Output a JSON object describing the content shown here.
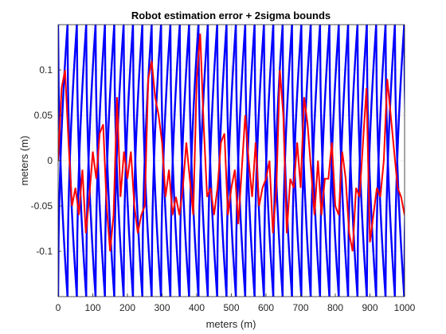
{
  "chart_data": {
    "type": "line",
    "title": "Robot estimation error + 2sigma bounds",
    "xlabel": "meters (m)",
    "ylabel": "meters (m)",
    "xlim": [
      0,
      1000
    ],
    "ylim": [
      -0.15,
      0.15
    ],
    "x_ticks": [
      0,
      100,
      200,
      300,
      400,
      500,
      600,
      700,
      800,
      900,
      1000
    ],
    "x_tick_labels": [
      "0",
      "100",
      "200",
      "300",
      "400",
      "500",
      "600",
      "700",
      "800",
      "900",
      "1000"
    ],
    "y_ticks": [
      -0.1,
      -0.05,
      0,
      0.05,
      0.1
    ],
    "y_tick_labels": [
      "-0.1",
      "-0.05",
      "0",
      "0.05",
      "0.1"
    ],
    "grid": true,
    "series": [
      {
        "color": "#0000ff",
        "style": "2sigma bound, upper branches (sawtooth: rises steeply then wraps)",
        "period": 27,
        "low_value": -0.15,
        "high_value": 0.15,
        "values": []
      },
      {
        "color": "#0000ff",
        "style": "2sigma bound, lower branches (mirror of upper)",
        "period": 27,
        "low_value": -0.15,
        "high_value": 0.15,
        "values": []
      },
      {
        "color": "#ff0000",
        "style": "estimation error",
        "x": [
          0,
          10,
          20,
          30,
          40,
          50,
          60,
          70,
          80,
          90,
          100,
          110,
          120,
          130,
          140,
          150,
          160,
          170,
          180,
          190,
          200,
          210,
          220,
          230,
          240,
          250,
          260,
          270,
          280,
          290,
          300,
          310,
          320,
          330,
          340,
          350,
          360,
          370,
          380,
          390,
          400,
          410,
          420,
          430,
          440,
          450,
          460,
          470,
          480,
          490,
          500,
          510,
          520,
          530,
          540,
          550,
          560,
          570,
          580,
          590,
          600,
          610,
          620,
          630,
          640,
          650,
          660,
          670,
          680,
          690,
          700,
          710,
          720,
          730,
          740,
          750,
          760,
          770,
          780,
          790,
          800,
          810,
          820,
          830,
          840,
          850,
          860,
          870,
          880,
          890,
          900,
          910,
          920,
          930,
          940,
          950,
          960,
          970,
          980,
          990,
          1000
        ],
        "y": [
          0.0,
          0.08,
          0.1,
          0.02,
          -0.05,
          -0.03,
          -0.06,
          -0.01,
          -0.08,
          -0.04,
          0.01,
          -0.02,
          0.03,
          0.04,
          -0.05,
          -0.1,
          -0.06,
          0.07,
          -0.04,
          0.01,
          -0.02,
          0.01,
          -0.05,
          -0.08,
          -0.06,
          -0.05,
          0.09,
          0.11,
          0.07,
          0.05,
          0.02,
          -0.04,
          -0.01,
          -0.06,
          -0.04,
          -0.06,
          -0.03,
          0.02,
          -0.02,
          -0.06,
          0.09,
          0.14,
          0.04,
          -0.04,
          -0.03,
          -0.06,
          -0.03,
          0.02,
          0.03,
          -0.06,
          -0.03,
          -0.01,
          -0.07,
          -0.01,
          0.05,
          0.0,
          -0.04,
          0.02,
          -0.05,
          -0.03,
          -0.02,
          0.0,
          -0.08,
          -0.03,
          0.1,
          0.05,
          -0.08,
          -0.02,
          -0.03,
          0.02,
          -0.03,
          0.07,
          0.04,
          -0.01,
          -0.06,
          0.0,
          -0.06,
          -0.02,
          -0.02,
          0.02,
          -0.05,
          -0.06,
          0.01,
          -0.02,
          -0.08,
          -0.1,
          -0.03,
          -0.04,
          0.02,
          0.08,
          -0.09,
          -0.06,
          -0.03,
          -0.04,
          0.0,
          0.09,
          0.05,
          0.01,
          -0.03,
          -0.04,
          -0.06
        ]
      }
    ]
  }
}
